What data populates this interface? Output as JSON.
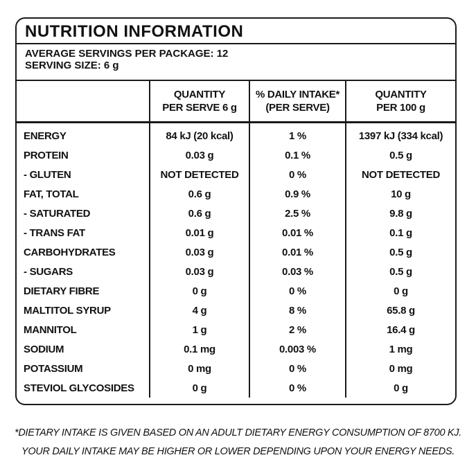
{
  "header": {
    "title": "NUTRITION INFORMATION",
    "servings_per_package": "AVERAGE SERVINGS PER PACKAGE: 12",
    "serving_size": "SERVING SIZE: 6 g"
  },
  "table": {
    "columns": [
      [
        "QUANTITY",
        "PER SERVE 6 g"
      ],
      [
        "% DAILY INTAKE*",
        "(PER SERVE)"
      ],
      [
        "QUANTITY",
        "PER 100 g"
      ]
    ],
    "rows": [
      [
        "ENERGY",
        "84 kJ (20 kcal)",
        "1 %",
        "1397 kJ (334 kcal)"
      ],
      [
        "PROTEIN",
        "0.03 g",
        "0.1 %",
        "0.5 g"
      ],
      [
        "- GLUTEN",
        "NOT DETECTED",
        "0 %",
        "NOT DETECTED"
      ],
      [
        "FAT, TOTAL",
        "0.6 g",
        "0.9 %",
        "10 g"
      ],
      [
        "- SATURATED",
        "0.6 g",
        "2.5 %",
        "9.8 g"
      ],
      [
        "- TRANS FAT",
        "0.01 g",
        "0.01 %",
        "0.1 g"
      ],
      [
        "CARBOHYDRATES",
        "0.03 g",
        "0.01 %",
        "0.5 g"
      ],
      [
        "- SUGARS",
        "0.03 g",
        "0.03 %",
        "0.5 g"
      ],
      [
        "DIETARY FIBRE",
        "0 g",
        "0 %",
        "0 g"
      ],
      [
        "MALTITOL SYRUP",
        "4 g",
        "8 %",
        "65.8 g"
      ],
      [
        "MANNITOL",
        "1 g",
        "2 %",
        "16.4 g"
      ],
      [
        "SODIUM",
        "0.1 mg",
        "0.003 %",
        "1 mg"
      ],
      [
        "POTASSIUM",
        "0 mg",
        "0 %",
        "0 mg"
      ],
      [
        "STEVIOL GLYCOSIDES",
        "0 g",
        "0 %",
        "0 g"
      ]
    ]
  },
  "footnote": [
    "*DIETARY INTAKE IS GIVEN BASED ON AN ADULT DIETARY ENERGY CONSUMPTION OF 8700 KJ.",
    "YOUR DAILY INTAKE MAY BE HIGHER OR LOWER DEPENDING UPON YOUR ENERGY NEEDS."
  ]
}
